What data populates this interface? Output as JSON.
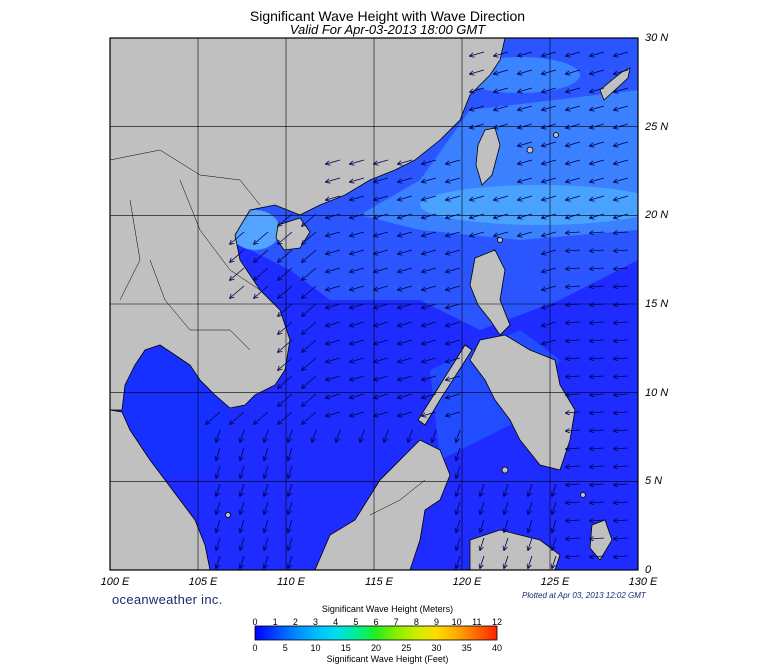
{
  "title": "Significant Wave Height with Wave Direction",
  "subtitle": "Valid For Apr-03-2013 18:00 GMT",
  "lat_labels": [
    "30 N",
    "25 N",
    "20 N",
    "15 N",
    "10 N",
    "5 N",
    "0"
  ],
  "lon_labels": [
    "100 E",
    "105 E",
    "110 E",
    "115 E",
    "120 E",
    "125 E",
    "130 E"
  ],
  "brand": "oceanweather inc.",
  "plotted": "Plotted at Apr 03, 2013 12:02 GMT",
  "colorbar": {
    "title_meters": "Significant Wave Height (Meters)",
    "title_feet": "Significant Wave Height (Feet)",
    "meter_ticks": [
      "0",
      "1",
      "2",
      "3",
      "4",
      "5",
      "6",
      "7",
      "8",
      "9",
      "10",
      "11",
      "12"
    ],
    "feet_ticks": [
      "0",
      "5",
      "10",
      "15",
      "20",
      "25",
      "30",
      "35",
      "40"
    ],
    "colors": [
      "#0000ff",
      "#0044ff",
      "#0088ff",
      "#00bbff",
      "#00ddee",
      "#00ee99",
      "#22ee22",
      "#88ee00",
      "#ccee00",
      "#ffdd00",
      "#ffaa00",
      "#ff6600",
      "#ff2200"
    ]
  },
  "colors": {
    "land": "#c0c0c0",
    "sea_low": "#1e1eff",
    "sea_mid": "#2a6aff",
    "sea_high": "#4fb0ff"
  }
}
